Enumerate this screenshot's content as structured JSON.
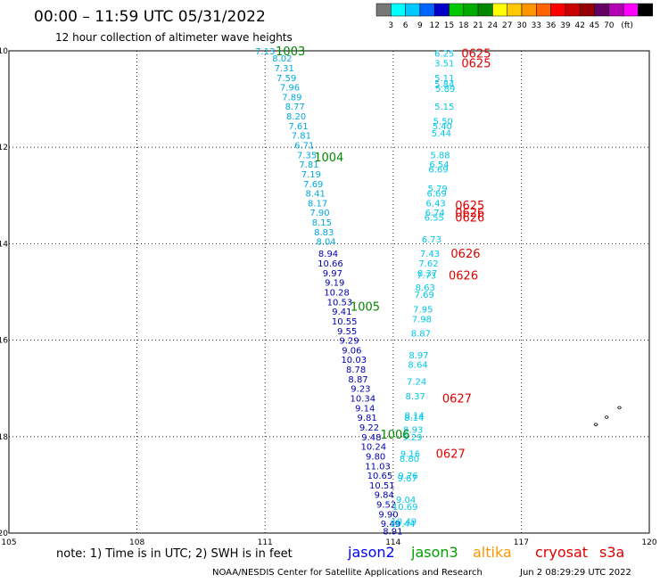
{
  "header": {
    "title": "00:00 – 11:59 UTC 05/31/2022",
    "subtitle": "12 hour collection of altimeter wave heights"
  },
  "scale": {
    "colors": [
      "#777777",
      "#00ffff",
      "#00c8ff",
      "#0064ff",
      "#0000c8",
      "#00c800",
      "#00aa00",
      "#008800",
      "#ffff00",
      "#ffc800",
      "#ff9600",
      "#ff6400",
      "#ff0000",
      "#c80000",
      "#960000",
      "#640064",
      "#b400b4",
      "#ff00ff",
      "#000000"
    ],
    "labels": [
      "3",
      "6",
      "9",
      "12",
      "15",
      "18",
      "21",
      "24",
      "27",
      "30",
      "33",
      "36",
      "39",
      "42",
      "45",
      "70",
      "(ft)"
    ]
  },
  "axes": {
    "lat_labels": [
      "10",
      "12",
      "14",
      "16",
      "18",
      "20"
    ],
    "lon_labels": [
      "105",
      "108",
      "111",
      "114",
      "117",
      "120"
    ]
  },
  "map_data": {
    "lon_range": [
      105,
      120
    ],
    "lat_range": [
      10,
      20
    ],
    "series": [
      {
        "name": "jason3-track1",
        "color": "#00a8e0",
        "points": [
          [
            "7.13",
            111.0,
            10.0
          ],
          [
            "8.02",
            111.4,
            10.15
          ],
          [
            "7.31",
            111.45,
            10.35
          ],
          [
            "7.59",
            111.5,
            10.55
          ],
          [
            "7.96",
            111.58,
            10.75
          ],
          [
            "7.89",
            111.63,
            10.95
          ],
          [
            "8.77",
            111.7,
            11.15
          ],
          [
            "8.20",
            111.73,
            11.35
          ],
          [
            "7.61",
            111.78,
            11.55
          ],
          [
            "7.81",
            111.85,
            11.75
          ],
          [
            "6.71",
            111.92,
            11.95
          ],
          [
            "7.35",
            111.98,
            12.15
          ],
          [
            "7.81",
            112.03,
            12.35
          ],
          [
            "7.19",
            112.08,
            12.55
          ],
          [
            "7.69",
            112.13,
            12.75
          ],
          [
            "8.41",
            112.18,
            12.95
          ],
          [
            "8.17",
            112.23,
            13.15
          ],
          [
            "7.90",
            112.28,
            13.35
          ],
          [
            "8.15",
            112.33,
            13.55
          ],
          [
            "8.83",
            112.38,
            13.75
          ],
          [
            "8.04",
            112.43,
            13.95
          ]
        ]
      },
      {
        "name": "jason2-track",
        "color": "#0000b4",
        "points": [
          [
            "8.94",
            112.48,
            14.2
          ],
          [
            "10.66",
            112.53,
            14.4
          ],
          [
            "9.97",
            112.58,
            14.6
          ],
          [
            "9.19",
            112.63,
            14.8
          ],
          [
            "10.28",
            112.68,
            15.0
          ],
          [
            "10.53",
            112.75,
            15.2
          ],
          [
            "9.41",
            112.8,
            15.4
          ],
          [
            "10.55",
            112.86,
            15.6
          ],
          [
            "9.55",
            112.92,
            15.8
          ],
          [
            "9.29",
            112.97,
            16.0
          ],
          [
            "9.06",
            113.03,
            16.2
          ],
          [
            "10.03",
            113.08,
            16.4
          ],
          [
            "8.78",
            113.13,
            16.6
          ],
          [
            "8.87",
            113.18,
            16.8
          ],
          [
            "9.23",
            113.24,
            17.0
          ],
          [
            "10.34",
            113.29,
            17.2
          ],
          [
            "9.14",
            113.34,
            17.4
          ],
          [
            "9.81",
            113.39,
            17.6
          ],
          [
            "9.22",
            113.44,
            17.8
          ],
          [
            "9.48",
            113.49,
            18.0
          ],
          [
            "10.24",
            113.54,
            18.2
          ],
          [
            "9.80",
            113.59,
            18.4
          ],
          [
            "11.03",
            113.64,
            18.6
          ],
          [
            "10.65",
            113.69,
            18.8
          ],
          [
            "10.51",
            113.74,
            19.0
          ],
          [
            "9.84",
            113.79,
            19.2
          ],
          [
            "9.52",
            113.84,
            19.4
          ],
          [
            "9.90",
            113.89,
            19.6
          ],
          [
            "9.49",
            113.94,
            19.8
          ],
          [
            "8.91",
            113.99,
            19.95
          ]
        ]
      },
      {
        "name": "jason3-track2",
        "color": "#00c8e8",
        "points": [
          [
            "6.25",
            115.2,
            10.05
          ],
          [
            "3.51",
            115.2,
            10.25
          ],
          [
            "5.11",
            115.2,
            10.55
          ],
          [
            "5.84",
            115.2,
            10.68
          ],
          [
            "5.89",
            115.22,
            10.78
          ],
          [
            "5.15",
            115.2,
            11.15
          ],
          [
            "5.50",
            115.17,
            11.45
          ],
          [
            "5.40",
            115.15,
            11.55
          ],
          [
            "5.44",
            115.13,
            11.7
          ],
          [
            "5.88",
            115.1,
            12.15
          ],
          [
            "6.54",
            115.08,
            12.35
          ],
          [
            "6.69",
            115.06,
            12.45
          ],
          [
            "5.79",
            115.04,
            12.85
          ],
          [
            "6.69",
            115.02,
            12.95
          ],
          [
            "6.43",
            115.0,
            13.15
          ],
          [
            "6.74",
            114.98,
            13.35
          ],
          [
            "6.55",
            114.96,
            13.45
          ],
          [
            "6.73",
            114.9,
            13.9
          ],
          [
            "7.43",
            114.86,
            14.2
          ],
          [
            "7.62",
            114.83,
            14.4
          ],
          [
            "8.37",
            114.8,
            14.6
          ],
          [
            "7.73",
            114.78,
            14.65
          ],
          [
            "8.63",
            114.75,
            14.9
          ],
          [
            "7.69",
            114.73,
            15.05
          ],
          [
            "7.95",
            114.7,
            15.35
          ],
          [
            "7.98",
            114.67,
            15.55
          ],
          [
            "8.87",
            114.65,
            15.85
          ],
          [
            "8.97",
            114.6,
            16.3
          ],
          [
            "8.64",
            114.58,
            16.5
          ],
          [
            "7.24",
            114.55,
            16.85
          ],
          [
            "8.37",
            114.52,
            17.15
          ],
          [
            "8.14",
            114.5,
            17.55
          ],
          [
            "8.14",
            114.49,
            17.6
          ],
          [
            "8.93",
            114.47,
            17.85
          ],
          [
            "9.29",
            114.45,
            18.0
          ],
          [
            "9.16",
            114.4,
            18.35
          ],
          [
            "8.80",
            114.38,
            18.45
          ],
          [
            "9.76",
            114.35,
            18.8
          ],
          [
            "9.67",
            114.33,
            18.85
          ],
          [
            "9.04",
            114.3,
            19.3
          ],
          [
            "10.69",
            114.28,
            19.45
          ],
          [
            "10.49",
            114.25,
            19.75
          ],
          [
            "10.44",
            114.22,
            19.8
          ]
        ]
      }
    ],
    "time_labels": [
      {
        "text": "1003",
        "color": "#008800",
        "lon": 111.25,
        "lat": 10.0
      },
      {
        "text": "1004",
        "color": "#008800",
        "lon": 112.15,
        "lat": 12.2
      },
      {
        "text": "1005",
        "color": "#008800",
        "lon": 113.0,
        "lat": 15.3
      },
      {
        "text": "1006",
        "color": "#008800",
        "lon": 113.7,
        "lat": 17.95
      },
      {
        "text": "0625",
        "color": "#e00000",
        "lon": 115.6,
        "lat": 10.05
      },
      {
        "text": "0625",
        "color": "#e00000",
        "lon": 115.6,
        "lat": 10.25
      },
      {
        "text": "0625",
        "color": "#e00000",
        "lon": 115.45,
        "lat": 13.2
      },
      {
        "text": "0626",
        "color": "#e00000",
        "lon": 115.45,
        "lat": 13.35
      },
      {
        "text": "0626",
        "color": "#e00000",
        "lon": 115.45,
        "lat": 13.45
      },
      {
        "text": "0626",
        "color": "#e00000",
        "lon": 115.35,
        "lat": 14.2
      },
      {
        "text": "0626",
        "color": "#e00000",
        "lon": 115.3,
        "lat": 14.65
      },
      {
        "text": "0627",
        "color": "#e00000",
        "lon": 115.15,
        "lat": 17.2
      },
      {
        "text": "0627",
        "color": "#e00000",
        "lon": 115.0,
        "lat": 18.35
      }
    ],
    "islands": [
      [
        119.3,
        17.4
      ],
      [
        119.0,
        17.6
      ],
      [
        118.75,
        17.75
      ]
    ]
  },
  "footer": {
    "note": "note: 1) Time is in UTC; 2) SWH is in feet",
    "satellites": [
      {
        "name": "jason2",
        "color": "#0000ff"
      },
      {
        "name": "jason3",
        "color": "#00a000"
      },
      {
        "name": "altika",
        "color": "#ff9600"
      },
      {
        "name": "cryosat",
        "color": "#e00000"
      },
      {
        "name": "s3a",
        "color": "#e00000"
      }
    ],
    "credit": "NOAA/NESDIS Center for Satellite Applications and Research",
    "timestamp": "Jun  2 08:29:29 UTC 2022"
  }
}
